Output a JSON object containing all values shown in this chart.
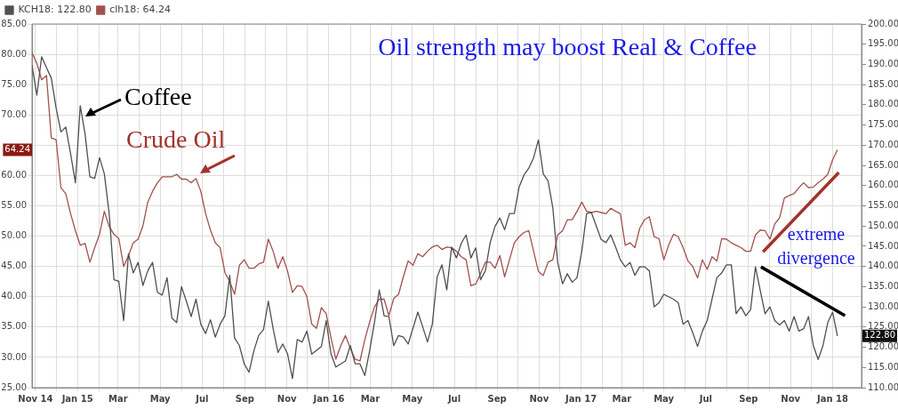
{
  "chart_data": {
    "type": "line",
    "title": "Oil strength may boost Real & Coffee",
    "x": [
      "2014-10-27",
      "2014-11-03",
      "2014-11-10",
      "2014-11-17",
      "2014-11-24",
      "2014-12-01",
      "2014-12-08",
      "2014-12-15",
      "2014-12-22",
      "2014-12-29",
      "2015-01-05",
      "2015-01-12",
      "2015-01-19",
      "2015-01-26",
      "2015-02-02",
      "2015-02-09",
      "2015-02-16",
      "2015-02-23",
      "2015-03-02",
      "2015-03-09",
      "2015-03-16",
      "2015-03-23",
      "2015-03-30",
      "2015-04-06",
      "2015-04-13",
      "2015-04-20",
      "2015-04-27",
      "2015-05-04",
      "2015-05-11",
      "2015-05-18",
      "2015-05-25",
      "2015-06-01",
      "2015-06-08",
      "2015-06-15",
      "2015-06-22",
      "2015-06-29",
      "2015-07-06",
      "2015-07-13",
      "2015-07-20",
      "2015-07-27",
      "2015-08-03",
      "2015-08-10",
      "2015-08-17",
      "2015-08-24",
      "2015-08-31",
      "2015-09-07",
      "2015-09-14",
      "2015-09-21",
      "2015-09-28",
      "2015-10-05",
      "2015-10-12",
      "2015-10-19",
      "2015-10-26",
      "2015-11-02",
      "2015-11-09",
      "2015-11-16",
      "2015-11-23",
      "2015-11-30",
      "2015-12-07",
      "2015-12-14",
      "2015-12-21",
      "2015-12-28",
      "2016-01-04",
      "2016-01-11",
      "2016-01-18",
      "2016-01-25",
      "2016-02-01",
      "2016-02-08",
      "2016-02-15",
      "2016-02-22",
      "2016-02-29",
      "2016-03-07",
      "2016-03-14",
      "2016-03-21",
      "2016-03-28",
      "2016-04-04",
      "2016-04-11",
      "2016-04-18",
      "2016-04-25",
      "2016-05-02",
      "2016-05-09",
      "2016-05-16",
      "2016-05-23",
      "2016-05-30",
      "2016-06-06",
      "2016-06-13",
      "2016-06-20",
      "2016-06-27",
      "2016-07-04",
      "2016-07-11",
      "2016-07-18",
      "2016-07-25",
      "2016-08-01",
      "2016-08-08",
      "2016-08-15",
      "2016-08-22",
      "2016-08-29",
      "2016-09-05",
      "2016-09-12",
      "2016-09-19",
      "2016-09-26",
      "2016-10-03",
      "2016-10-10",
      "2016-10-17",
      "2016-10-24",
      "2016-10-31",
      "2016-11-07",
      "2016-11-14",
      "2016-11-21",
      "2016-11-28",
      "2016-12-05",
      "2016-12-12",
      "2016-12-19",
      "2016-12-26",
      "2017-01-02",
      "2017-01-09",
      "2017-01-16",
      "2017-01-23",
      "2017-01-30",
      "2017-02-06",
      "2017-02-13",
      "2017-02-20",
      "2017-02-27",
      "2017-03-06",
      "2017-03-13",
      "2017-03-20",
      "2017-03-27",
      "2017-04-03",
      "2017-04-10",
      "2017-04-17",
      "2017-04-24",
      "2017-05-01",
      "2017-05-08",
      "2017-05-15",
      "2017-05-22",
      "2017-05-29",
      "2017-06-05",
      "2017-06-12",
      "2017-06-19",
      "2017-06-26",
      "2017-07-03",
      "2017-07-10",
      "2017-07-17",
      "2017-07-24",
      "2017-07-31",
      "2017-08-07",
      "2017-08-14",
      "2017-08-21",
      "2017-08-28",
      "2017-09-04",
      "2017-09-11",
      "2017-09-18",
      "2017-09-25",
      "2017-10-02",
      "2017-10-09",
      "2017-10-16",
      "2017-10-23",
      "2017-10-30",
      "2017-11-06",
      "2017-11-13",
      "2017-11-20",
      "2017-11-27",
      "2017-12-04",
      "2017-12-11",
      "2017-12-18",
      "2017-12-25",
      "2018-01-01",
      "2018-01-08"
    ],
    "series": [
      {
        "name": "KCH18: 122.80",
        "color": "#505050",
        "axis": "y2",
        "x": [
          "2014-10-27",
          "2014-11-03",
          "2014-11-10",
          "2014-11-17",
          "2014-11-24",
          "2014-12-01",
          "2014-12-08",
          "2014-12-15",
          "2014-12-22",
          "2014-12-29",
          "2015-01-05",
          "2015-01-12",
          "2015-01-19",
          "2015-01-26",
          "2015-02-02",
          "2015-02-09",
          "2015-02-16",
          "2015-02-23",
          "2015-03-02",
          "2015-03-09",
          "2015-03-16",
          "2015-03-23",
          "2015-03-30",
          "2015-04-06",
          "2015-04-13",
          "2015-04-20",
          "2015-04-27",
          "2015-05-04",
          "2015-05-11",
          "2015-05-18",
          "2015-05-25",
          "2015-06-01",
          "2015-06-08",
          "2015-06-15",
          "2015-06-22",
          "2015-06-29",
          "2015-07-06",
          "2015-07-13",
          "2015-07-20",
          "2015-07-27",
          "2015-08-03",
          "2015-08-10",
          "2015-08-17",
          "2015-08-24",
          "2015-08-31",
          "2015-09-07",
          "2015-09-14",
          "2015-09-21",
          "2015-09-28",
          "2015-10-05",
          "2015-10-12",
          "2015-10-19",
          "2015-10-26",
          "2015-11-02",
          "2015-11-09",
          "2015-11-16",
          "2015-11-23",
          "2015-11-30",
          "2015-12-07",
          "2015-12-21",
          "2015-12-28",
          "2016-01-04",
          "2016-01-11",
          "2016-01-25",
          "2016-02-01",
          "2016-02-08",
          "2016-02-15",
          "2016-02-22",
          "2016-02-29",
          "2016-03-07",
          "2016-03-14",
          "2016-03-21",
          "2016-03-28",
          "2016-04-04",
          "2016-04-11",
          "2016-04-18",
          "2016-04-25",
          "2016-05-09",
          "2016-05-16",
          "2016-05-23",
          "2016-05-30",
          "2016-06-06",
          "2016-06-13",
          "2016-06-20",
          "2016-06-27",
          "2016-07-04",
          "2016-07-11",
          "2016-07-18",
          "2016-07-25",
          "2016-08-01",
          "2016-08-08",
          "2016-08-15",
          "2016-08-22",
          "2016-08-29",
          "2016-09-05",
          "2016-09-12",
          "2016-09-19",
          "2016-09-26",
          "2016-10-03",
          "2016-10-10",
          "2016-10-17",
          "2016-10-24",
          "2016-10-31",
          "2016-11-07",
          "2016-11-14",
          "2016-11-21",
          "2016-11-28",
          "2016-12-05",
          "2016-12-12",
          "2016-12-19",
          "2016-12-26",
          "2017-01-02",
          "2017-01-09",
          "2017-01-16",
          "2017-01-30",
          "2017-02-06",
          "2017-02-13",
          "2017-02-20",
          "2017-02-27",
          "2017-03-06",
          "2017-03-13",
          "2017-03-20",
          "2017-03-27",
          "2017-04-03",
          "2017-04-10",
          "2017-04-17",
          "2017-04-24",
          "2017-05-01",
          "2017-05-08",
          "2017-05-15",
          "2017-05-22",
          "2017-05-29",
          "2017-06-05",
          "2017-06-12",
          "2017-06-19",
          "2017-06-26",
          "2017-07-03",
          "2017-07-10",
          "2017-07-17",
          "2017-07-24",
          "2017-07-31",
          "2017-08-07",
          "2017-08-14",
          "2017-08-21",
          "2017-08-28",
          "2017-09-04",
          "2017-09-11",
          "2017-09-18",
          "2017-09-25",
          "2017-10-02",
          "2017-10-09",
          "2017-10-16",
          "2017-10-23",
          "2017-10-30",
          "2017-11-06",
          "2017-11-13",
          "2017-11-20",
          "2017-11-27",
          "2017-12-04",
          "2017-12-11",
          "2017-12-18",
          "2017-12-25",
          "2018-01-01",
          "2018-01-08"
        ],
        "values": [
          189.8,
          182.4,
          191.9,
          189.2,
          186.6,
          179.2,
          173.3,
          174.5,
          167.9,
          160.7,
          179.8,
          172.8,
          162.2,
          161.8,
          166.9,
          162.9,
          153.1,
          136.7,
          136.3,
          126.6,
          143.1,
          138.4,
          141,
          135.3,
          138.9,
          141,
          133.6,
          132.9,
          137.2,
          127.2,
          126.1,
          135,
          131.4,
          127.6,
          131.9,
          125.7,
          123.4,
          126.8,
          122.5,
          125.7,
          127.8,
          137.8,
          122.3,
          120.4,
          115.9,
          113.8,
          119.1,
          122.9,
          124.4,
          131.4,
          124.6,
          118.7,
          120.8,
          118.3,
          112.3,
          121.9,
          121.3,
          124,
          118.3,
          120.2,
          126.6,
          118.3,
          115.1,
          116.6,
          120.4,
          115.9,
          115.9,
          113,
          119.1,
          126.1,
          134.2,
          127.8,
          127.6,
          120.4,
          122.9,
          122.5,
          120.8,
          128.7,
          125.1,
          121.3,
          125.7,
          137.4,
          140.4,
          134.2,
          144.8,
          142.1,
          145.7,
          147.8,
          142.1,
          144.6,
          136.7,
          138.9,
          145.9,
          149.9,
          152,
          149.1,
          153.1,
          153.1,
          159.7,
          162.6,
          164.3,
          166.9,
          171.3,
          162.9,
          161.2,
          154.4,
          141,
          135.7,
          138.2,
          136.1,
          137.2,
          143.8,
          153.1,
          153.3,
          146.7,
          145.9,
          147.8,
          144.8,
          141.6,
          139.9,
          141,
          137.8,
          139.9,
          139.9,
          138.9,
          130,
          131,
          133.1,
          132.5,
          131.9,
          131,
          125.7,
          126.6,
          123.6,
          120.2,
          124,
          126.6,
          131.9,
          137.2,
          138.4,
          140.4,
          140.4,
          128.3,
          130,
          127.8,
          129.3,
          139.9,
          134,
          128.3,
          130,
          126.6,
          125.5,
          126.6,
          124,
          127.6,
          124,
          124.6,
          127.6,
          120.4,
          117,
          120.4,
          126.1,
          128.7,
          122.8
        ]
      },
      {
        "name": "clh18: 64.24",
        "color": "#a0524d",
        "values": [
          80.3,
          78.5,
          75.8,
          76.5,
          66.2,
          65.9,
          58,
          57,
          53.7,
          50.9,
          48.5,
          48.8,
          45.7,
          48.1,
          50.3,
          54.1,
          51.6,
          50.3,
          49.6,
          45,
          46.8,
          48.9,
          49.5,
          51.7,
          55.6,
          57.4,
          58.8,
          59.8,
          59.8,
          59.8,
          60.2,
          59.4,
          59.4,
          58.8,
          59.5,
          57.4,
          53.7,
          51,
          48.9,
          48.1,
          44,
          42.5,
          40.4,
          45.2,
          46.1,
          44.7,
          44.7,
          45.4,
          45.7,
          49.5,
          47.5,
          44.7,
          46.6,
          44.2,
          40.7,
          41.8,
          41.7,
          40,
          35.5,
          34.8,
          38.2,
          37.2,
          33.2,
          29.7,
          31.9,
          33.6,
          31.5,
          29.7,
          29.4,
          32.9,
          35.8,
          38.3,
          39.6,
          39.6,
          36.9,
          39.7,
          40.4,
          43.3,
          45.9,
          45.2,
          47.1,
          46.6,
          47.5,
          48.2,
          48.5,
          47.8,
          48.2,
          48.1,
          47.5,
          46.6,
          46.1,
          41.8,
          42.1,
          43.8,
          45.7,
          45.7,
          44.7,
          46.8,
          43.3,
          46.1,
          48.9,
          49.9,
          50.6,
          50.9,
          47.5,
          44.2,
          43.5,
          45.7,
          46.1,
          50.2,
          50.9,
          52.7,
          52.7,
          54.1,
          55.6,
          54.1,
          53.9,
          54.1,
          53.9,
          53.7,
          54.6,
          54.1,
          53.7,
          48.5,
          48.9,
          48.1,
          51.3,
          52.7,
          53.2,
          49.9,
          49.6,
          46.1,
          48.5,
          50.3,
          49.9,
          48.1,
          45.9,
          45,
          43.1,
          46.1,
          44.5,
          46.6,
          45.9,
          49.6,
          49.5,
          48.9,
          48.5,
          48.1,
          47.5,
          47.5,
          50.2,
          51,
          50.9,
          49.5,
          52,
          53,
          56.3,
          56.7,
          57,
          58,
          58.8,
          58,
          58.1,
          58.8,
          59.4,
          60.2,
          62.6,
          64.24
        ]
      },
      {
        "type": "line",
        "color": "#a3322b",
        "x": [
          "2017-09-22",
          "2018-01-10"
        ],
        "values": [
          47.4,
          60.5
        ]
      },
      {
        "type": "line",
        "color": "#000000",
        "axis": "y2",
        "x": [
          "2017-09-19",
          "2018-01-19"
        ],
        "values": [
          139.9,
          127.8
        ]
      }
    ],
    "xlim": [
      "2014-10-27",
      "2018-02-12"
    ],
    "xticks": [
      {
        "value": "2014-11-01",
        "label": "Nov 14"
      },
      {
        "value": "2014-12-01",
        "label": null
      },
      {
        "value": "2015-01-01",
        "label": "Jan 15"
      },
      {
        "value": "2015-02-01",
        "label": null
      },
      {
        "value": "2015-03-01",
        "label": "Mar"
      },
      {
        "value": "2015-04-01",
        "label": null
      },
      {
        "value": "2015-05-01",
        "label": "May"
      },
      {
        "value": "2015-06-01",
        "label": null
      },
      {
        "value": "2015-07-01",
        "label": "Jul"
      },
      {
        "value": "2015-08-01",
        "label": null
      },
      {
        "value": "2015-09-01",
        "label": "Sep"
      },
      {
        "value": "2015-10-01",
        "label": null
      },
      {
        "value": "2015-11-01",
        "label": "Nov"
      },
      {
        "value": "2015-12-01",
        "label": null
      },
      {
        "value": "2016-01-01",
        "label": "Jan 16"
      },
      {
        "value": "2016-02-01",
        "label": null
      },
      {
        "value": "2016-03-01",
        "label": "Mar"
      },
      {
        "value": "2016-04-01",
        "label": null
      },
      {
        "value": "2016-05-01",
        "label": "May"
      },
      {
        "value": "2016-06-01",
        "label": null
      },
      {
        "value": "2016-07-01",
        "label": "Jul"
      },
      {
        "value": "2016-08-01",
        "label": null
      },
      {
        "value": "2016-09-01",
        "label": "Sep"
      },
      {
        "value": "2016-10-01",
        "label": null
      },
      {
        "value": "2016-11-01",
        "label": "Nov"
      },
      {
        "value": "2016-12-01",
        "label": null
      },
      {
        "value": "2017-01-01",
        "label": "Jan 17"
      },
      {
        "value": "2017-02-01",
        "label": null
      },
      {
        "value": "2017-03-01",
        "label": "Mar"
      },
      {
        "value": "2017-04-01",
        "label": null
      },
      {
        "value": "2017-05-01",
        "label": "May"
      },
      {
        "value": "2017-06-01",
        "label": null
      },
      {
        "value": "2017-07-01",
        "label": "Jul"
      },
      {
        "value": "2017-08-01",
        "label": null
      },
      {
        "value": "2017-09-01",
        "label": "Sep"
      },
      {
        "value": "2017-10-01",
        "label": null
      },
      {
        "value": "2017-11-01",
        "label": "Nov"
      },
      {
        "value": "2017-12-01",
        "label": null
      },
      {
        "value": "2018-01-01",
        "label": "Jan 18"
      }
    ],
    "ylim": [
      25,
      85
    ],
    "yticks": [
      {
        "value": 25,
        "label": "25.00"
      },
      {
        "value": 30,
        "label": "30.00"
      },
      {
        "value": 35,
        "label": "35.00"
      },
      {
        "value": 40,
        "label": "40.00"
      },
      {
        "value": 45,
        "label": "45.00"
      },
      {
        "value": 50,
        "label": "50.00"
      },
      {
        "value": 55,
        "label": "55.00"
      },
      {
        "value": 60,
        "label": "60.00"
      },
      {
        "value": 65,
        "label": null
      },
      {
        "value": 70,
        "label": "70.00"
      },
      {
        "value": 75,
        "label": "75.00"
      },
      {
        "value": 80,
        "label": "80.00"
      },
      {
        "value": 85,
        "label": "85.00"
      }
    ],
    "y2lim": [
      110,
      200
    ],
    "y2ticks": [
      {
        "value": 110,
        "label": "110.00"
      },
      {
        "value": 115,
        "label": "115.00"
      },
      {
        "value": 120,
        "label": "120.00"
      },
      {
        "value": 125,
        "label": "125.00"
      },
      {
        "value": 130,
        "label": "130.00"
      },
      {
        "value": 135,
        "label": "135.00"
      },
      {
        "value": 140,
        "label": "140.00"
      },
      {
        "value": 145,
        "label": "145.00"
      },
      {
        "value": 150,
        "label": "150.00"
      },
      {
        "value": 155,
        "label": "155.00"
      },
      {
        "value": 160,
        "label": "160.00"
      },
      {
        "value": 165,
        "label": "165.00"
      },
      {
        "value": 170,
        "label": "170.00"
      },
      {
        "value": 175,
        "label": "175.00"
      },
      {
        "value": 180,
        "label": "180.00"
      },
      {
        "value": 185,
        "label": "185.00"
      },
      {
        "value": 190,
        "label": "190.00"
      },
      {
        "value": 195,
        "label": "195.00"
      },
      {
        "value": 200,
        "label": "200.00"
      }
    ],
    "annotations": [
      "Coffee",
      "Crude Oil",
      "extreme divergence",
      "64.24",
      "122.80"
    ],
    "grid": true,
    "legend": "top left",
    "marker": "none"
  }
}
